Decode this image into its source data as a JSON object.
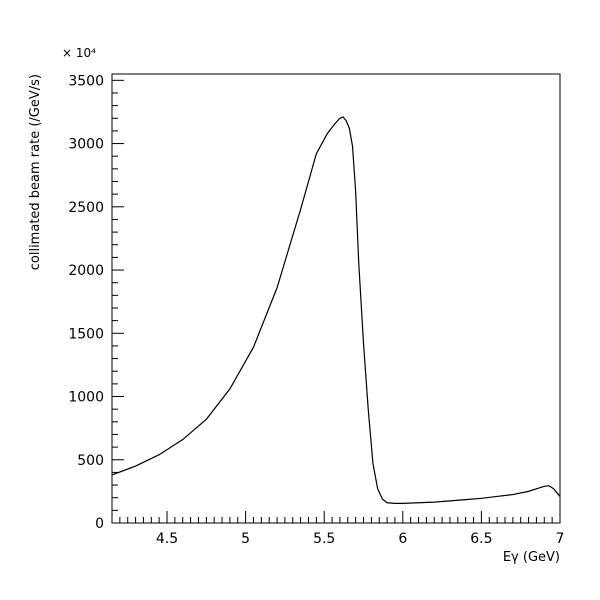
{
  "chart_data": {
    "type": "line",
    "title": "",
    "xlabel": "Eγ (GeV)",
    "ylabel": "collimated beam rate (/GeV/s)",
    "y_multiplier_label": "× 10⁴",
    "xlim": [
      4.15,
      7.0
    ],
    "ylim": [
      0,
      3550
    ],
    "x_ticks": [
      4.5,
      5,
      5.5,
      6,
      6.5,
      7
    ],
    "x_tick_labels": [
      "4.5",
      "5",
      "5.5",
      "6",
      "6.5",
      "7"
    ],
    "y_ticks": [
      0,
      500,
      1000,
      1500,
      2000,
      2500,
      3000,
      3500
    ],
    "y_tick_labels": [
      "0",
      "500",
      "1000",
      "1500",
      "2000",
      "2500",
      "3000",
      "3500"
    ],
    "grid": false,
    "series": [
      {
        "x": [
          4.15,
          4.3,
          4.45,
          4.6,
          4.75,
          4.9,
          5.05,
          5.2,
          5.35,
          5.45,
          5.52,
          5.57,
          5.6,
          5.62,
          5.64,
          5.66,
          5.68,
          5.7,
          5.72,
          5.75,
          5.78,
          5.81,
          5.84,
          5.87,
          5.9,
          5.95,
          6.0,
          6.1,
          6.2,
          6.3,
          6.4,
          6.5,
          6.6,
          6.7,
          6.8,
          6.85,
          6.9,
          6.93,
          6.96,
          7.0
        ],
        "y": [
          380,
          450,
          540,
          660,
          820,
          1060,
          1390,
          1860,
          2480,
          2920,
          3080,
          3160,
          3200,
          3210,
          3180,
          3120,
          2980,
          2620,
          2050,
          1420,
          900,
          470,
          270,
          190,
          160,
          155,
          155,
          160,
          165,
          175,
          185,
          195,
          210,
          225,
          250,
          270,
          290,
          295,
          270,
          210
        ]
      }
    ]
  }
}
